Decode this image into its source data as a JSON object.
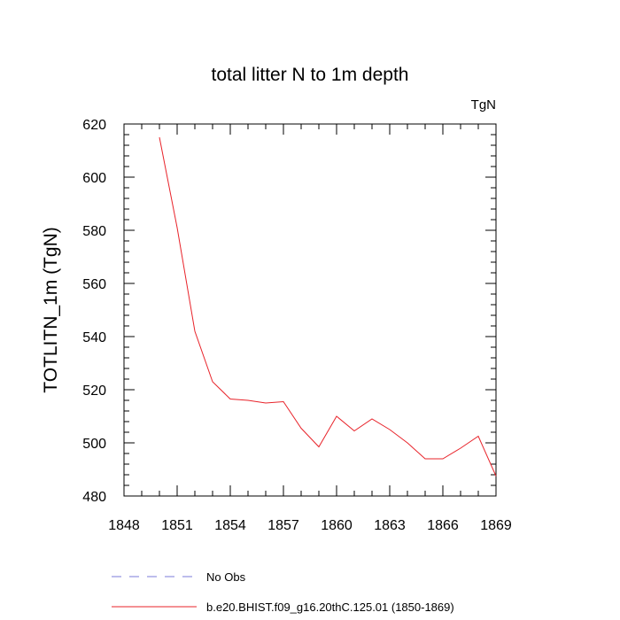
{
  "chart_data": {
    "type": "line",
    "title": "total litter N to 1m depth",
    "units_label": "TgN",
    "ylabel": "TOTLITN_1m  (TgN)",
    "xlabel": "",
    "xlim": [
      1848,
      1869
    ],
    "ylim": [
      480,
      620
    ],
    "x_ticks": [
      1848,
      1851,
      1854,
      1857,
      1860,
      1863,
      1866,
      1869
    ],
    "y_ticks": [
      480,
      500,
      520,
      540,
      560,
      580,
      600,
      620
    ],
    "x_minor_step": 1,
    "y_minor_step": 4,
    "grid": false,
    "legend_position": "bottom",
    "series": [
      {
        "name": "No Obs",
        "style": "dashed",
        "color": "#7b7bd9",
        "x": [],
        "y": []
      },
      {
        "name": "b.e20.BHIST.f09_g16.20thC.125.01 (1850-1869)",
        "style": "solid",
        "color": "#e8232a",
        "x": [
          1850,
          1851,
          1852,
          1853,
          1854,
          1855,
          1856,
          1857,
          1858,
          1859,
          1860,
          1861,
          1862,
          1863,
          1864,
          1865,
          1866,
          1867,
          1868,
          1869
        ],
        "y": [
          615,
          581,
          542,
          523,
          516.5,
          516,
          515,
          515.5,
          505.5,
          498.5,
          510,
          504.5,
          509,
          505,
          500,
          494,
          494,
          498,
          502.5,
          487.5
        ]
      }
    ]
  }
}
